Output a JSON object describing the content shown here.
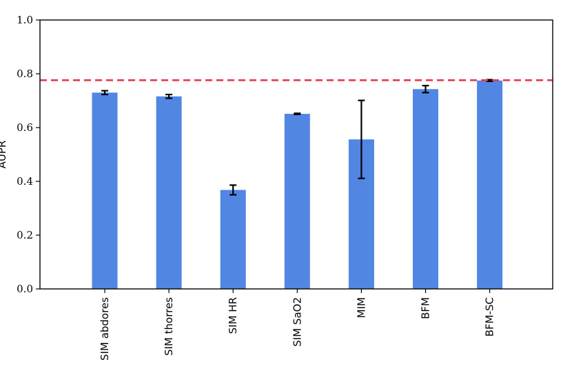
{
  "chart_data": {
    "type": "bar",
    "categories": [
      "SIM abdores",
      "SIM thorres",
      "SIM HR",
      "SIM SaO2",
      "MIM",
      "BFM",
      "BFM-SC"
    ],
    "values": [
      0.73,
      0.716,
      0.368,
      0.651,
      0.556,
      0.743,
      0.775
    ],
    "errors": [
      0.007,
      0.007,
      0.018,
      0.002,
      0.145,
      0.013,
      0.003
    ],
    "ylabel": "AUPR",
    "xlabel": "",
    "ylim": [
      0.0,
      1.0
    ],
    "yticks": [
      "0.0",
      "0.2",
      "0.4",
      "0.6",
      "0.8",
      "1.0"
    ],
    "reference_line": {
      "value": 0.776,
      "style": "dashed",
      "color": "#e8384f"
    },
    "bar_color": "#5286e3",
    "grid": false
  }
}
